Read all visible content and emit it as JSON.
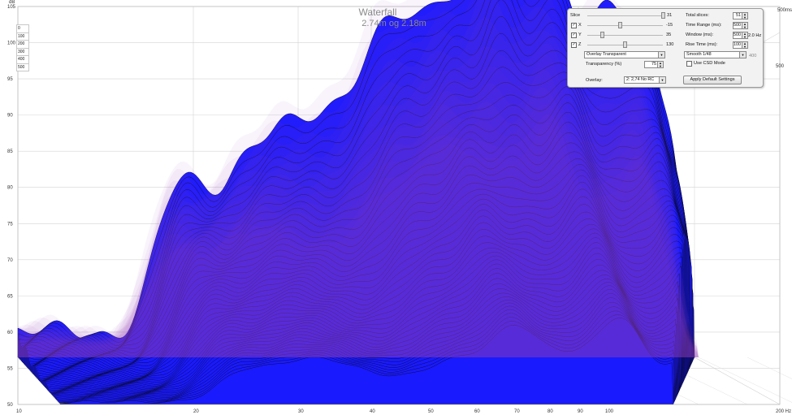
{
  "title": "Waterfall",
  "subtitle": "2.74m og 2.18m",
  "y_unit": "dB",
  "y_ticks": [
    "105",
    "100",
    "95",
    "90",
    "85",
    "80",
    "75",
    "70",
    "65",
    "60",
    "55",
    "50"
  ],
  "x_ticks": [
    "10",
    "20",
    "30",
    "40",
    "50",
    "60",
    "70",
    "80",
    "90",
    "100",
    "200 Hz"
  ],
  "depth_labels": [
    "0",
    "100",
    "200",
    "300",
    "400",
    "500"
  ],
  "time_far_label": "500ms",
  "time_right_label": "500",
  "panel": {
    "slice_label": "Slice",
    "slice_value": "31",
    "x_label": "X",
    "x_value": "-15",
    "y_label": "Y",
    "y_value": "35",
    "z_label": "Z",
    "z_value": "130",
    "total_slices_label": "Total slices:",
    "total_slices_value": "51",
    "time_range_label": "Time Range (ms):",
    "time_range_value": "500",
    "window_label": "Window (ms):",
    "window_value": "500",
    "window_hz": "2.0 Hz",
    "rise_time_label": "Rise Time (ms):",
    "rise_time_value": "100",
    "overlay_mode": "Overlay Transparent",
    "smoothing": "Smooth 1/48",
    "transparency_label": "Transparency (%)",
    "transparency_value": "75",
    "use_csd_label": "Use CSD Mode",
    "overlay_label": "Overlay:",
    "overlay_value": "2: 2,74 No RC",
    "apply_defaults": "Apply Default Settings",
    "aux_value": "400"
  },
  "colors": {
    "primary_surface": "#1a1aff",
    "overlay_surface": "#a040b8",
    "grid": "#d4d4d4",
    "background": "#ffffff"
  }
}
